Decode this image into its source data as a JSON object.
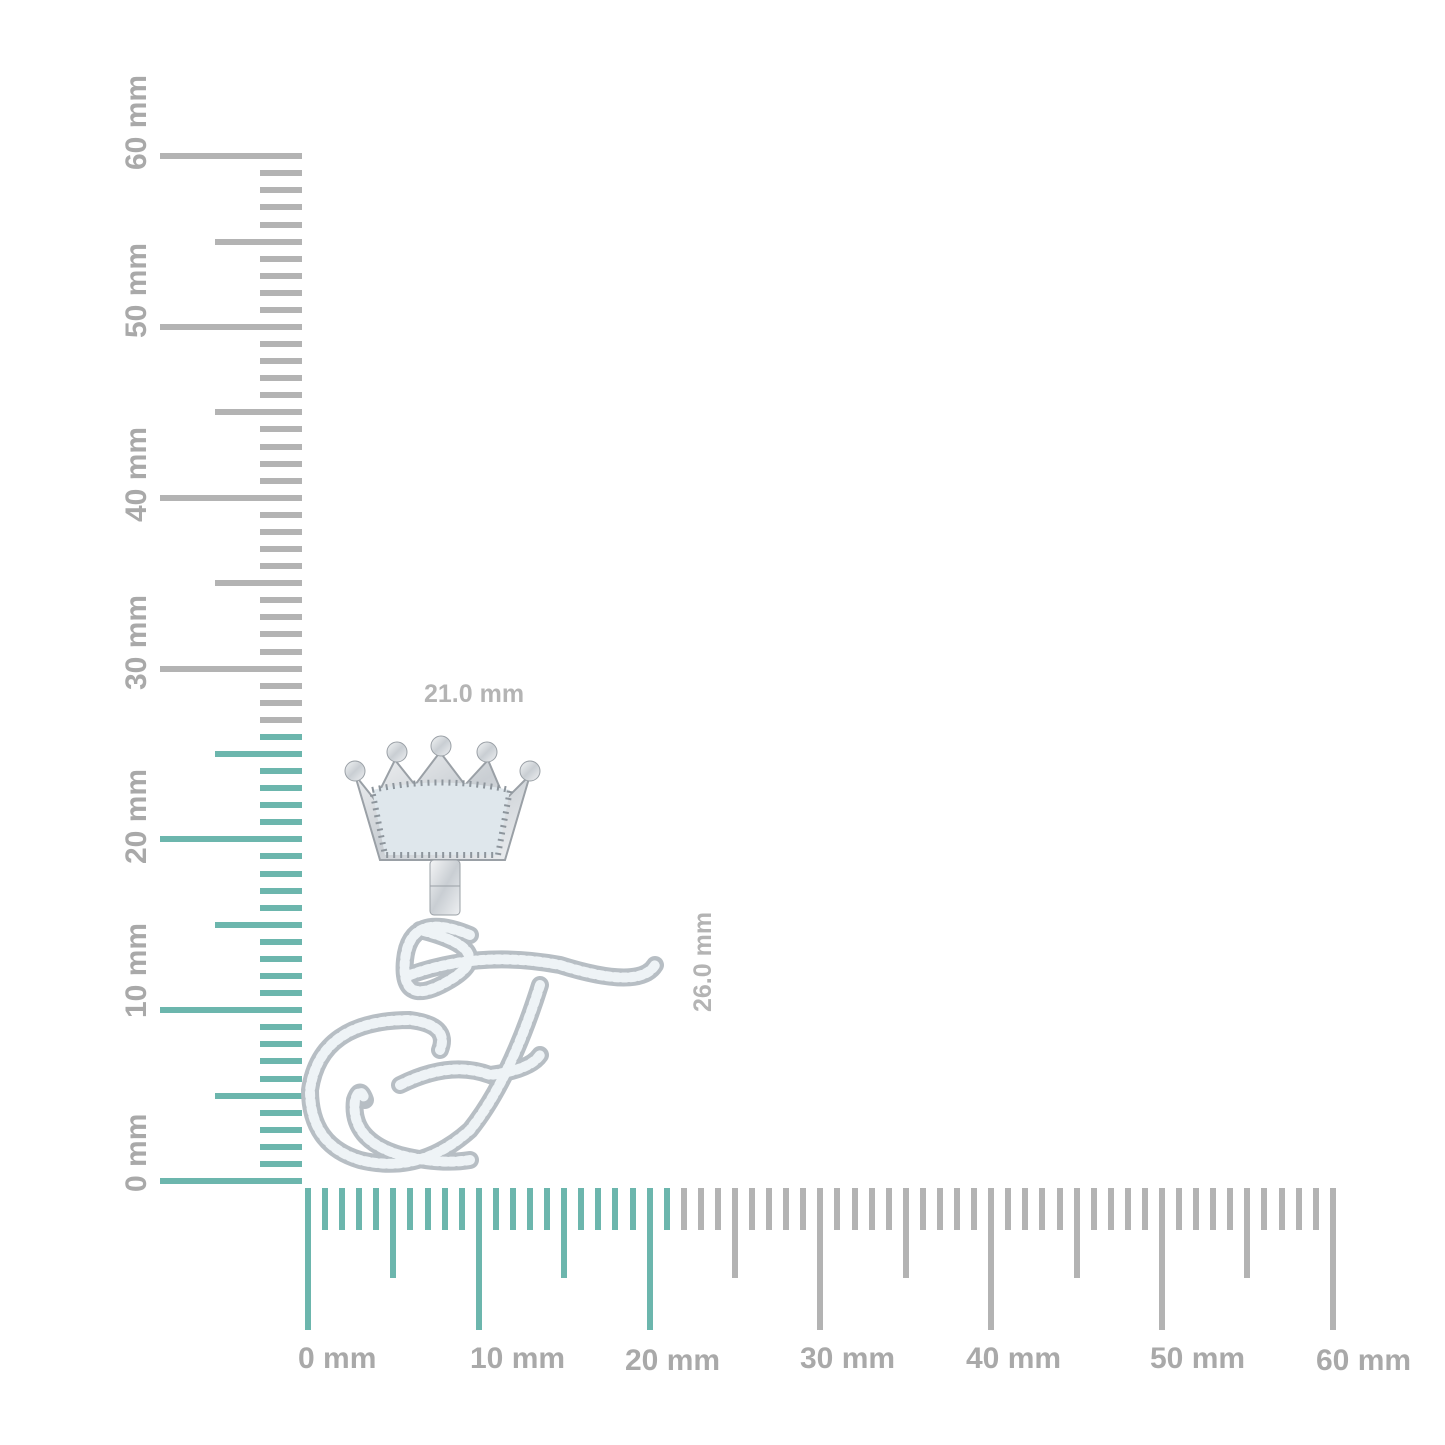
{
  "image": {
    "type": "product-size-reference",
    "subject": "crown-letter-f-pendant"
  },
  "colors": {
    "highlight": "#6cb6ad",
    "ruler": "#b3b3b3",
    "label": "#a9a9a9",
    "metal": "#d9dde0"
  },
  "horizontal_ruler": {
    "labels": [
      "0 mm",
      "10 mm",
      "20 mm",
      "30 mm",
      "40 mm",
      "50 mm",
      "60 mm"
    ],
    "range_mm": [
      0,
      60
    ],
    "highlight_mm": 21
  },
  "vertical_ruler": {
    "labels": [
      "0 mm",
      "10 mm",
      "20 mm",
      "30 mm",
      "40 mm",
      "50 mm",
      "60 mm"
    ],
    "range_mm": [
      0,
      60
    ],
    "highlight_mm": 26
  },
  "dimensions": {
    "width": "21.0 mm",
    "height": "26.0 mm"
  }
}
